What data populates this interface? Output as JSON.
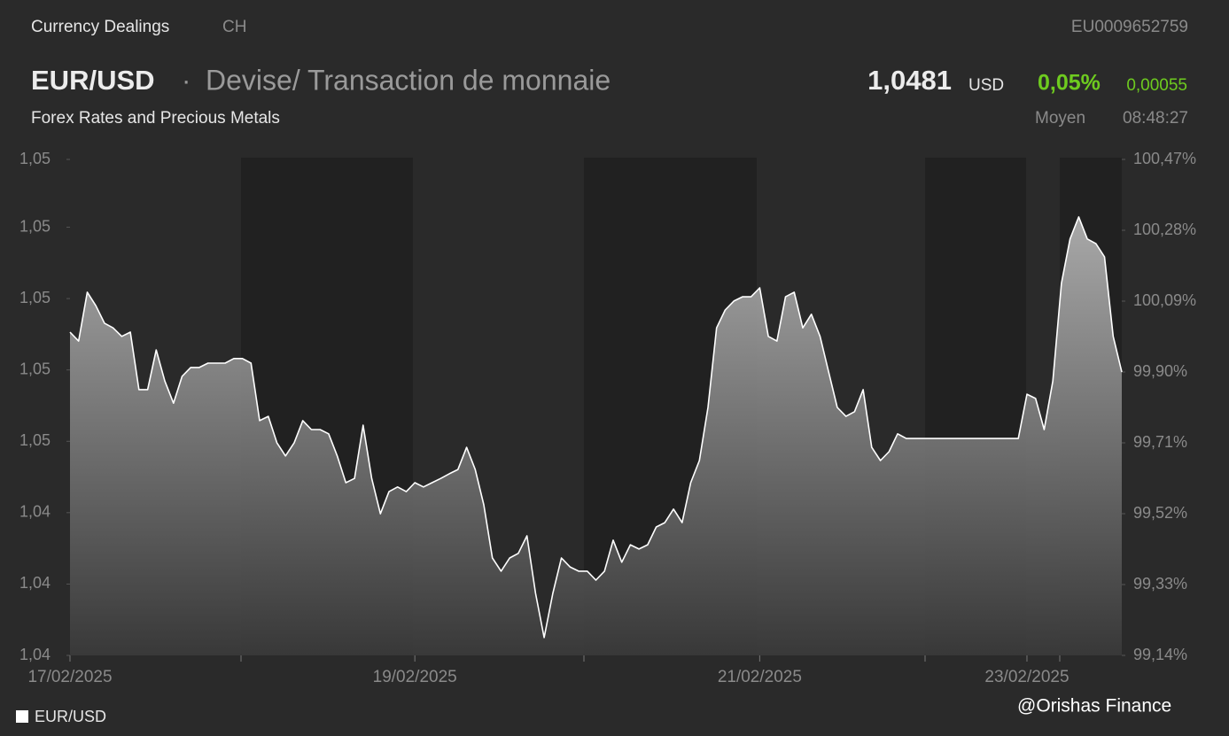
{
  "header": {
    "section": "Currency Dealings",
    "country": "CH",
    "isin": "EU0009652759",
    "symbol": "EUR/USD",
    "separator": "·",
    "description": "Devise/ Transaction de monnaie",
    "subtitle": "Forex Rates and Precious Metals",
    "price": "1,0481",
    "currency": "USD",
    "change_percent": "0,05%",
    "change_abs": "0,00055",
    "price_type": "Moyen",
    "time": "08:48:27"
  },
  "watermark": "@Orishas Finance",
  "chart_data": {
    "type": "area",
    "categories": [
      "17/02/2025",
      null,
      null,
      null,
      null,
      null,
      null,
      null,
      null,
      null,
      null,
      null,
      null,
      null,
      null,
      null,
      null,
      null,
      null,
      null,
      null,
      null,
      null,
      null,
      null,
      null,
      null,
      null,
      null,
      null,
      null,
      null,
      null,
      null,
      null,
      null,
      null,
      null,
      null,
      null,
      "19/02/2025",
      null,
      null,
      null,
      null,
      null,
      null,
      null,
      null,
      null,
      null,
      null,
      null,
      null,
      null,
      null,
      null,
      null,
      null,
      null,
      null,
      null,
      null,
      null,
      null,
      null,
      null,
      null,
      null,
      null,
      null,
      null,
      null,
      null,
      null,
      null,
      null,
      null,
      null,
      null,
      "21/02/2025",
      null,
      null,
      null,
      null,
      null,
      null,
      null,
      null,
      null,
      null,
      null,
      null,
      null,
      null,
      null,
      null,
      null,
      null,
      null,
      null,
      null,
      null,
      null,
      null,
      null,
      null,
      null,
      null,
      null,
      null,
      "23/02/2025",
      null,
      null,
      null,
      null,
      null,
      null,
      null,
      null,
      null,
      null,
      null
    ],
    "series": [
      {
        "name": "EUR/USD",
        "color": "#ffffff",
        "values": [
          1.04816,
          1.04791,
          1.04928,
          1.0489,
          1.04841,
          1.04828,
          1.04804,
          1.04816,
          1.04655,
          1.04655,
          1.04766,
          1.04679,
          1.04617,
          1.04692,
          1.04717,
          1.04717,
          1.04729,
          1.04729,
          1.04729,
          1.04742,
          1.04742,
          1.04729,
          1.04568,
          1.0458,
          1.04506,
          1.04469,
          1.04506,
          1.04568,
          1.04543,
          1.04543,
          1.04531,
          1.04469,
          1.04394,
          1.04406,
          1.04555,
          1.04406,
          1.04307,
          1.04369,
          1.04382,
          1.04369,
          1.04394,
          1.04382,
          1.04394,
          1.04406,
          1.04419,
          1.04431,
          1.04493,
          1.04431,
          1.04332,
          1.04183,
          1.04146,
          1.04183,
          1.04196,
          1.04245,
          1.04084,
          1.0396,
          1.04084,
          1.04183,
          1.04158,
          1.04146,
          1.04146,
          1.04121,
          1.04146,
          1.04233,
          1.04171,
          1.0422,
          1.04208,
          1.0422,
          1.0427,
          1.04282,
          1.0432,
          1.04282,
          1.04394,
          1.04456,
          1.04605,
          1.04828,
          1.04878,
          1.04903,
          1.04915,
          1.04915,
          1.0494,
          1.04804,
          1.04791,
          1.04915,
          1.04928,
          1.04828,
          1.04866,
          1.04804,
          1.04704,
          1.04605,
          1.0458,
          1.04593,
          1.04655,
          1.04493,
          1.04456,
          1.04481,
          1.04531,
          1.04518,
          1.04518,
          1.04518,
          1.04518,
          1.04518,
          1.04518,
          1.04518,
          1.04518,
          1.04518,
          1.04518,
          1.04518,
          1.04518,
          1.04518,
          1.04518,
          1.04642,
          1.0463,
          1.04543,
          1.04679,
          1.04953,
          1.05077,
          1.05139,
          1.05077,
          1.05064,
          1.05027,
          1.04804,
          1.04704
        ]
      }
    ],
    "ylim": [
      1.0391,
      1.053
    ],
    "yticks": [
      {
        "value": 1.0391,
        "label": "1,04"
      },
      {
        "value": 1.0411,
        "label": "1,04"
      },
      {
        "value": 1.0431,
        "label": "1,04"
      },
      {
        "value": 1.0451,
        "label": "1,05"
      },
      {
        "value": 1.0471,
        "label": "1,05"
      },
      {
        "value": 1.0491,
        "label": "1,05"
      },
      {
        "value": 1.0511,
        "label": "1,05"
      },
      {
        "value": 1.053,
        "label": "1,05"
      }
    ],
    "y2lim": [
      99.14,
      100.47
    ],
    "y2ticks": [
      {
        "value": 99.14,
        "label": "99,14%"
      },
      {
        "value": 99.33,
        "label": "99,33%"
      },
      {
        "value": 99.52,
        "label": "99,52%"
      },
      {
        "value": 99.71,
        "label": "99,71%"
      },
      {
        "value": 99.9,
        "label": "99,90%"
      },
      {
        "value": 100.09,
        "label": "100,09%"
      },
      {
        "value": 100.28,
        "label": "100,28%"
      },
      {
        "value": 100.47,
        "label": "100,47%"
      }
    ],
    "legend": "bottom-left"
  }
}
